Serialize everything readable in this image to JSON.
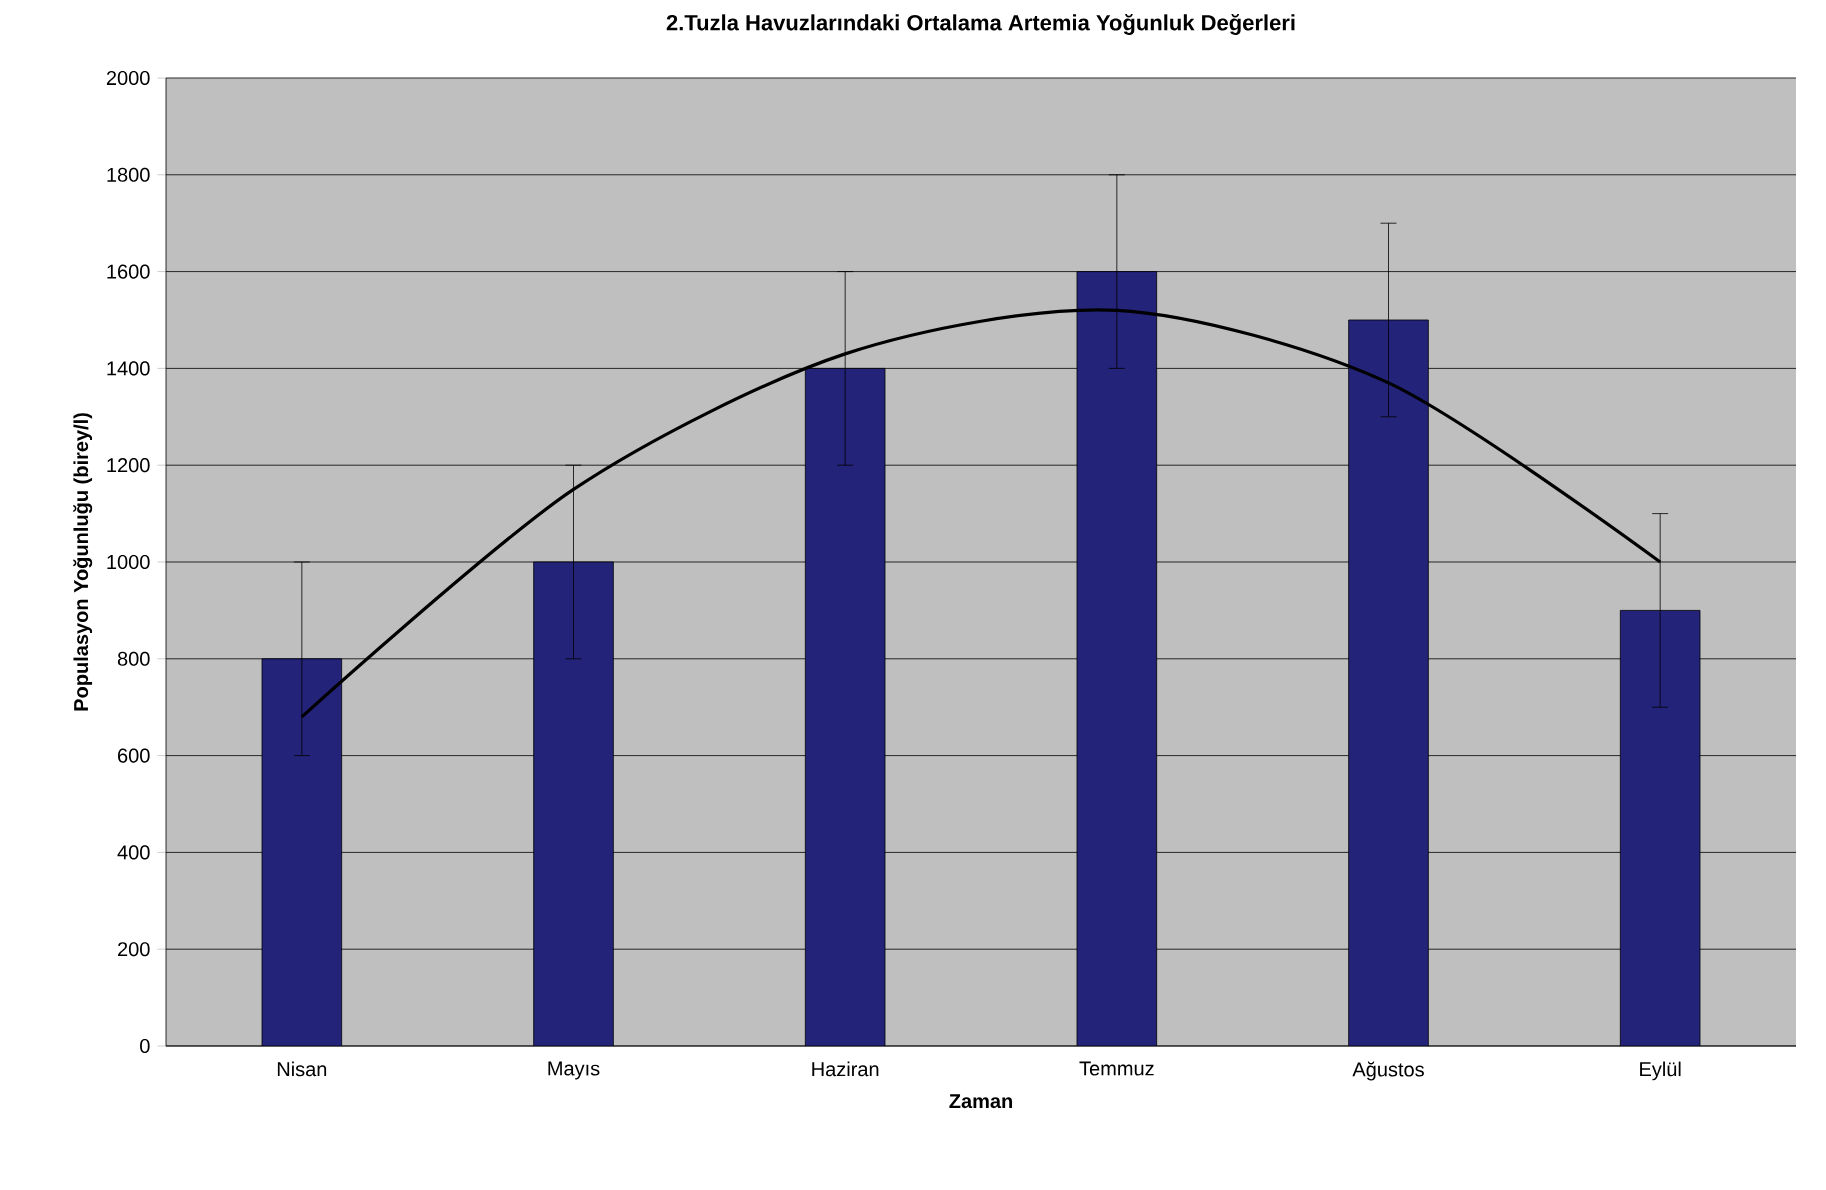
{
  "chart_data": {
    "type": "bar",
    "title": "2.Tuzla Havuzlarındaki Ortalama Artemia Yoğunluk Değerleri",
    "xlabel": "Zaman",
    "ylabel": "Populasyon Yoğunluğu (birey/l)",
    "categories": [
      "Nisan",
      "Mayıs",
      "Haziran",
      "Temmuz",
      "Ağustos",
      "Eylül"
    ],
    "series": [
      {
        "type": "bar",
        "color": "#23237a",
        "values": [
          800,
          1000,
          1400,
          1600,
          1500,
          900
        ],
        "errors": [
          200,
          200,
          200,
          200,
          200,
          200
        ]
      },
      {
        "type": "line",
        "color": "#000000",
        "values": [
          680,
          1150,
          1430,
          1520,
          1370,
          1000
        ]
      }
    ],
    "ylim": [
      0,
      2000
    ],
    "yticks": [
      0,
      200,
      400,
      600,
      800,
      1000,
      1200,
      1400,
      1600,
      1800,
      2000
    ],
    "grid": "y"
  }
}
